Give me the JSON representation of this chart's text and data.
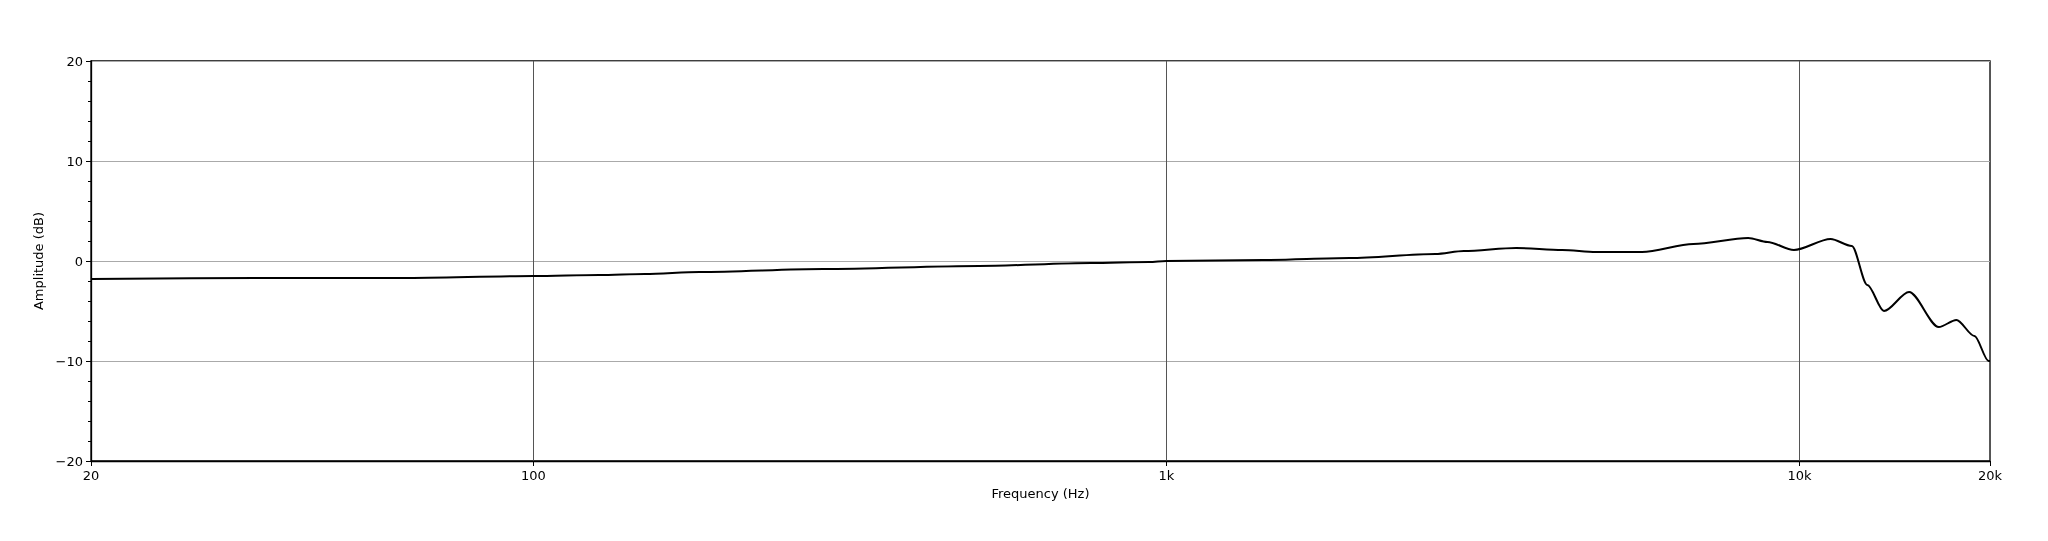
{
  "chart_data": {
    "type": "line",
    "xlabel": "Frequency (Hz)",
    "ylabel": "Amplitude (dB)",
    "log": "x",
    "grid": true,
    "marker": "none",
    "line_style": "solid",
    "xlim": [
      20,
      20000
    ],
    "xticks": [
      20,
      100,
      {
        "value": 1000,
        "label": "1k"
      },
      {
        "value": 10000,
        "label": "10k"
      },
      {
        "value": 20000,
        "label": "20k"
      }
    ],
    "ylim": [
      -20,
      20
    ],
    "yticks": [
      {
        "value": -20,
        "label": "−20"
      },
      {
        "value": -10,
        "label": "−10"
      },
      0,
      10,
      20
    ],
    "series": [
      {
        "color": "#000000",
        "x": [
          20,
          38,
          62,
          100,
          127,
          150,
          183,
          287,
          506,
          760,
          939,
          1000,
          1425,
          1947,
          2660,
          2950,
          3570,
          4220,
          4770,
          5640,
          6800,
          8300,
          8900,
          9800,
          11200,
          12100,
          12800,
          13600,
          14900,
          16600,
          17700,
          18900,
          19900,
          20000
        ],
        "values": [
          -1.8,
          -1.7,
          -1.7,
          -1.5,
          -1.4,
          -1.3,
          -1.1,
          -0.8,
          -0.5,
          -0.2,
          -0.1,
          0,
          0.1,
          0.3,
          0.7,
          1.0,
          1.3,
          1.1,
          0.9,
          0.9,
          1.7,
          2.3,
          1.9,
          1.1,
          2.2,
          1.5,
          -2.4,
          -5.0,
          -3.1,
          -6.6,
          -5.9,
          -7.5,
          -10.0,
          -10.0
        ]
      }
    ]
  }
}
